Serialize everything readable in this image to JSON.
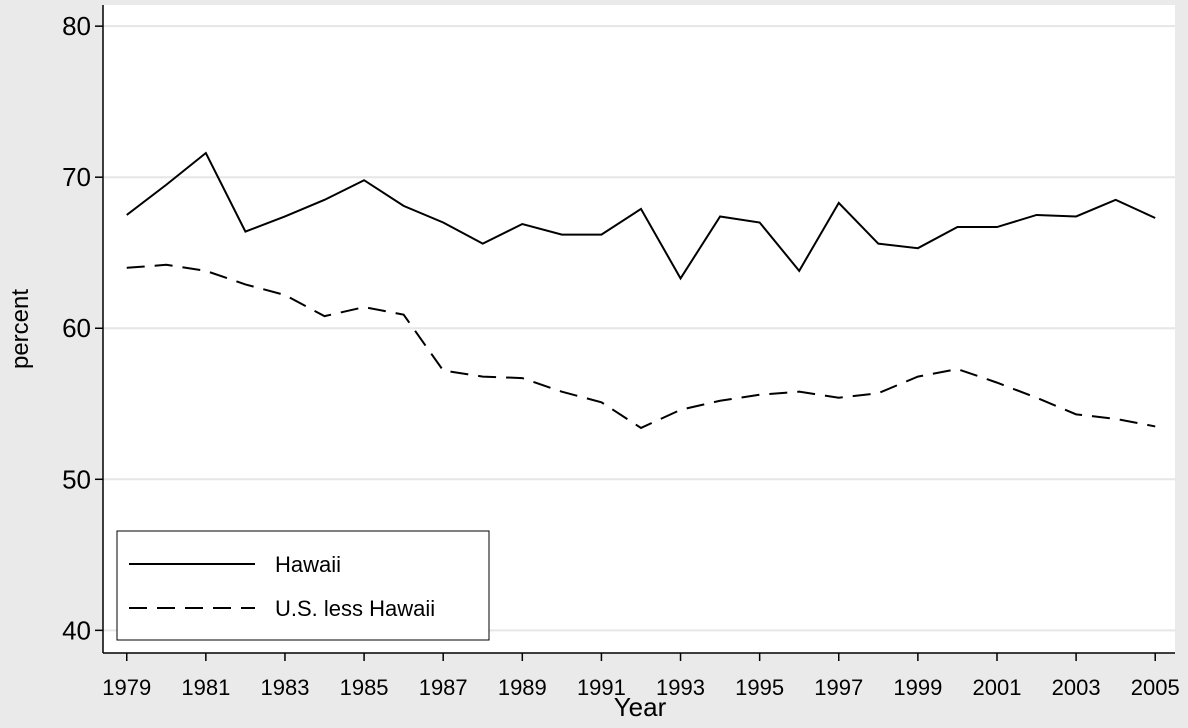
{
  "chart_data": {
    "type": "line",
    "x": [
      1979,
      1980,
      1981,
      1982,
      1983,
      1984,
      1985,
      1986,
      1987,
      1988,
      1989,
      1990,
      1991,
      1992,
      1993,
      1994,
      1995,
      1996,
      1997,
      1998,
      1999,
      2000,
      2001,
      2002,
      2003,
      2004,
      2005
    ],
    "series": [
      {
        "name": "Hawaii",
        "color": "#000000",
        "style": "solid",
        "values": [
          67.5,
          69.5,
          71.6,
          66.4,
          67.4,
          68.5,
          69.8,
          68.1,
          67.0,
          65.6,
          66.9,
          66.2,
          66.2,
          67.9,
          63.3,
          67.4,
          67.0,
          63.8,
          68.3,
          65.6,
          65.3,
          66.7,
          66.7,
          67.5,
          67.4,
          68.5,
          67.3
        ]
      },
      {
        "name": "U.S. less Hawaii",
        "color": "#000000",
        "style": "dashed",
        "values": [
          64.0,
          64.2,
          63.8,
          62.9,
          62.2,
          60.8,
          61.4,
          60.9,
          57.2,
          56.8,
          56.7,
          55.8,
          55.1,
          53.4,
          54.6,
          55.2,
          55.6,
          55.8,
          55.4,
          55.7,
          56.8,
          57.3,
          56.4,
          55.4,
          54.3,
          54.0,
          53.5
        ]
      }
    ],
    "x_label": "Year",
    "y_label": "percent",
    "xlim": [
      1978.4,
      2005.5
    ],
    "xticks": [
      1979,
      1981,
      1983,
      1985,
      1987,
      1989,
      1991,
      1993,
      1995,
      1997,
      1999,
      2001,
      2003,
      2005
    ],
    "ylim": [
      38.5,
      81.4
    ],
    "yticks": [
      40,
      50,
      60,
      70,
      80
    ],
    "grid": true,
    "legend_position": "lower left"
  }
}
